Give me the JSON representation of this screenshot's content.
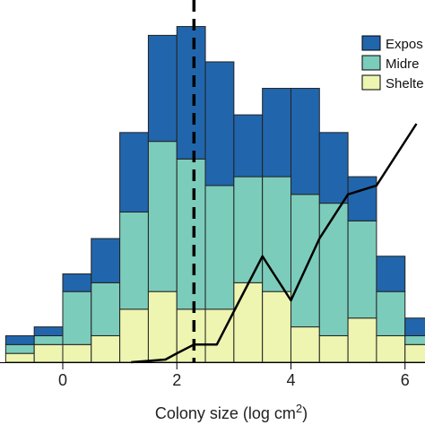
{
  "chart_data": {
    "type": "bar",
    "stacked": true,
    "xlabel": "Colony size (log cm",
    "xlabel_superscript": "2",
    "xlabel_close": ")",
    "x_ticks": [
      "0",
      "2",
      "4",
      "6"
    ],
    "x_tick_values": [
      0,
      2,
      4,
      6
    ],
    "xlim": [
      -1.1,
      6.35
    ],
    "ylim": [
      0,
      41
    ],
    "bin_width": 0.5,
    "bin_starts": [
      -1.0,
      -0.5,
      0.0,
      0.5,
      1.0,
      1.5,
      2.0,
      2.5,
      3.0,
      3.5,
      4.0,
      4.5,
      5.0,
      5.5,
      6.0
    ],
    "series": [
      {
        "name": "Sheltered",
        "color": "#edf5b0",
        "values": [
          1,
          2,
          2,
          3,
          6,
          8,
          6,
          6,
          9,
          8,
          4,
          3,
          5,
          3,
          2
        ]
      },
      {
        "name": "Midreef",
        "color": "#7cccbb",
        "values": [
          1,
          1,
          6,
          6,
          11,
          17,
          17,
          14,
          12,
          13,
          15,
          15,
          11,
          5,
          1
        ]
      },
      {
        "name": "Exposed",
        "color": "#2166ac",
        "values": [
          1,
          1,
          2,
          5,
          9,
          12,
          15,
          14,
          7,
          10,
          12,
          8,
          5,
          4,
          2
        ]
      }
    ],
    "legend": [
      "Exposed",
      "Midreef",
      "Sheltered"
    ],
    "legend_visible_text": [
      "Expos",
      "Midre",
      "Shelte"
    ],
    "legend_position": "top-right",
    "vline": {
      "x": 2.3,
      "style": "dashed"
    },
    "line_series": {
      "x": [
        1.2,
        1.8,
        2.0,
        2.3,
        2.7,
        3.1,
        3.5,
        3.7,
        4.0,
        4.5,
        5.0,
        5.5,
        6.2
      ],
      "y": [
        0,
        0.3,
        1,
        2,
        2,
        7,
        12,
        10,
        7,
        14,
        19,
        20,
        27
      ]
    },
    "grid": false
  }
}
